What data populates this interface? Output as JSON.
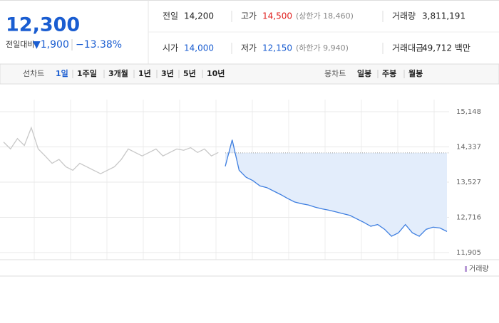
{
  "quote": {
    "price": "12,300",
    "change_label": "전일대비",
    "change": "▼1,900",
    "change_pct": "−13.38%",
    "rows": [
      [
        {
          "label": "전일",
          "value": "14,200"
        },
        {
          "label": "고가",
          "value": "14,500",
          "note": "(상한가 18,460)"
        },
        {
          "label": "거래량",
          "value": "3,811,191"
        }
      ],
      [
        {
          "label": "시가",
          "value": "14,000"
        },
        {
          "label": "저가",
          "value": "12,150",
          "note": "(하한가 9,940)"
        },
        {
          "label": "거래대금",
          "value": "49,712 백만"
        }
      ]
    ]
  },
  "tabs": {
    "line_label": "선차트",
    "line_tabs": [
      "1일",
      "1주일",
      "3개월",
      "1년",
      "3년",
      "5년",
      "10년"
    ],
    "candle_label": "봉차트",
    "candle_tabs": [
      "일봉",
      "주봉",
      "월봉"
    ]
  },
  "chart_data": {
    "type": "line",
    "series": [
      {
        "color": "#c8c8c8",
        "values": [
          14450,
          14290,
          14530,
          14370,
          14780,
          14290,
          14130,
          13960,
          14050,
          13880,
          13800,
          13960,
          13880,
          13800,
          13720,
          13800,
          13880,
          14050,
          14290,
          14210,
          14130,
          14210,
          14290,
          14130,
          14210,
          14290,
          14260,
          14320,
          14210,
          14290,
          14130,
          14210,
          null,
          null,
          null,
          null,
          null,
          null,
          null,
          null,
          null,
          null,
          null,
          null,
          null,
          null,
          null,
          null,
          null,
          null,
          null,
          null,
          null,
          null,
          null,
          null,
          null,
          null,
          null,
          null,
          null,
          null,
          null,
          null,
          null
        ]
      },
      {
        "color": "#3f7fe0",
        "values": [
          null,
          null,
          null,
          null,
          null,
          null,
          null,
          null,
          null,
          null,
          null,
          null,
          null,
          null,
          null,
          null,
          null,
          null,
          null,
          null,
          null,
          null,
          null,
          null,
          null,
          null,
          null,
          null,
          null,
          null,
          null,
          null,
          13890,
          14500,
          13800,
          13640,
          13560,
          13440,
          13400,
          13320,
          13240,
          13150,
          13070,
          13030,
          13000,
          12950,
          12910,
          12880,
          12840,
          12800,
          12760,
          12680,
          12600,
          12510,
          12550,
          12440,
          12280,
          12360,
          12550,
          12360,
          12280,
          12440,
          12490,
          12470,
          12390
        ]
      }
    ],
    "reference": 14200,
    "area_color": "#e3edfb",
    "ylim": [
      11905,
      15148
    ],
    "yticks": [
      {
        "value": 11905,
        "label": "11,905"
      },
      {
        "value": 12716,
        "label": "12,716"
      },
      {
        "value": 13527,
        "label": "13,527"
      },
      {
        "value": 14337,
        "label": "14,337"
      },
      {
        "value": 15148,
        "label": "15,148"
      }
    ],
    "grid": true,
    "legend": "거래량"
  }
}
